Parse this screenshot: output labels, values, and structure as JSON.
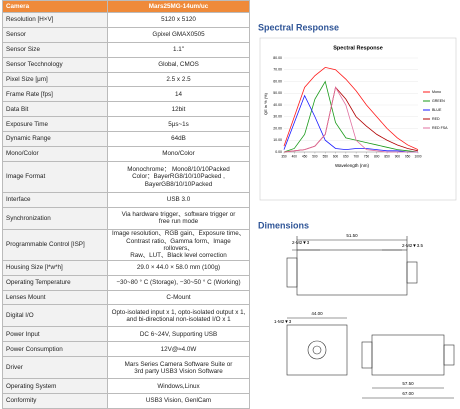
{
  "table": {
    "header": {
      "label": "Camera",
      "value": "Mars25MG-14um/uc"
    },
    "rows": [
      {
        "label": "Resolution [H×V]",
        "value": [
          "5120 x 5120"
        ]
      },
      {
        "label": "Sensor",
        "value": [
          "Gpixel GMAX0505"
        ]
      },
      {
        "label": "Sensor Size",
        "value": [
          "1.1\""
        ]
      },
      {
        "label": "Sensor Tecchnology",
        "value": [
          "Global, CMOS"
        ]
      },
      {
        "label": "Pixel Size [μm]",
        "value": [
          "2.5 x 2.5"
        ]
      },
      {
        "label": "Frame Rate [fps]",
        "value": [
          "14"
        ]
      },
      {
        "label": "Data Bit",
        "value": [
          "12bit"
        ]
      },
      {
        "label": "Exposure Time",
        "value": [
          "5μs~1s"
        ]
      },
      {
        "label": "Dynamic Range",
        "value": [
          "64dB"
        ]
      },
      {
        "label": "Mono/Color",
        "value": [
          "Mono/Color"
        ]
      },
      {
        "label": "Image Format",
        "value": [
          "Monochrome：   Mono8/10/10Packed",
          "Color：BayerRG8/10/10Packed ,",
          "BayerGB8/10/10Packed"
        ]
      },
      {
        "label": "Interface",
        "value": [
          "USB 3.0"
        ]
      },
      {
        "label": "Synchronization",
        "value": [
          "Via hardware trigger、software trigger or",
          "free run mode"
        ]
      },
      {
        "label": "Programmable Control [ISP]",
        "value": [
          "Image resolution、RGB gain、Exposure time、",
          "Contrast ratio、Gamma form、Image rollovers、",
          "Raw、LUT、Black level correction"
        ]
      },
      {
        "label": "Housing Size [l*w*h]",
        "value": [
          "29.0 × 44.0 × 58.0 mm (100g)"
        ]
      },
      {
        "label": "Operating Temperature",
        "value": [
          "−30~80 ° C (Storage), −30~50 ° C (Working)"
        ]
      },
      {
        "label": "Lenses Mount",
        "value": [
          "C-Mount"
        ]
      },
      {
        "label": "Digital I/O",
        "value": [
          "Opto-isolated input x 1, opto-isolated output x 1,",
          "and bi-directional non-isolated I/O x 1"
        ]
      },
      {
        "label": "Power Input",
        "value": [
          "DC 6~24V, Supporting USB"
        ]
      },
      {
        "label": "Power Consumption",
        "value": [
          "12V@≈4.0W"
        ]
      },
      {
        "label": "Driver",
        "value": [
          "Mars Series Camera Software Suite or",
          "3rd party USB3 Vision Software"
        ]
      },
      {
        "label": "Operating System",
        "value": [
          "Windows,Linux"
        ]
      },
      {
        "label": "Conformity",
        "value": [
          "USB3 Vision, GenlCam"
        ]
      }
    ]
  },
  "spectral_heading": "Spectral Response",
  "dimensions_heading": "Dimensions",
  "dimension_labels": [
    "51.50",
    "2-M2▼3",
    "2-M2▼3.5",
    "44.00",
    "1-M2▼3",
    "57.50",
    "67.00"
  ],
  "chart_data": {
    "type": "line",
    "title": "Spectral Response",
    "x_label": "Wavelength (nm)",
    "y_label": "QE in % (%)",
    "x": [
      350,
      400,
      450,
      500,
      550,
      600,
      650,
      700,
      750,
      800,
      850,
      900,
      950,
      1000
    ],
    "xlim": [
      350,
      1000
    ],
    "xticks": [
      350,
      400,
      450,
      500,
      550,
      600,
      650,
      700,
      750,
      800,
      850,
      900,
      950,
      1000
    ],
    "ylim": [
      0,
      80
    ],
    "yticks": [
      {
        "value": 0,
        "label": "0.00"
      },
      {
        "value": 10,
        "label": "10.00"
      },
      {
        "value": 20,
        "label": "20.00"
      },
      {
        "value": 30,
        "label": "30.00"
      },
      {
        "value": 40,
        "label": "40.00"
      },
      {
        "value": 50,
        "label": "50.00"
      },
      {
        "value": 60,
        "label": "60.00"
      },
      {
        "value": 70,
        "label": "70.00"
      },
      {
        "value": 80,
        "label": "80.00"
      }
    ],
    "series": [
      {
        "name": "Mono",
        "color": "#ff1a1a",
        "values": [
          5,
          30,
          55,
          65,
          72,
          70,
          62,
          52,
          40,
          30,
          20,
          12,
          6,
          2
        ]
      },
      {
        "name": "GREEN",
        "color": "#1a9a1a",
        "values": [
          0,
          3,
          15,
          45,
          60,
          25,
          12,
          10,
          8,
          6,
          4,
          2,
          1,
          0
        ]
      },
      {
        "name": "BLUE",
        "color": "#1a1aff",
        "values": [
          2,
          25,
          48,
          30,
          10,
          3,
          2,
          3,
          3,
          2,
          1,
          1,
          0,
          0
        ]
      },
      {
        "name": "RED",
        "color": "#b00000",
        "values": [
          0,
          1,
          2,
          5,
          15,
          55,
          45,
          30,
          22,
          15,
          10,
          6,
          3,
          1
        ]
      },
      {
        "name": "RED FSA",
        "color": "#e070a0",
        "values": [
          0,
          1,
          2,
          5,
          15,
          55,
          40,
          10,
          2,
          1,
          0,
          0,
          0,
          0
        ]
      }
    ]
  }
}
